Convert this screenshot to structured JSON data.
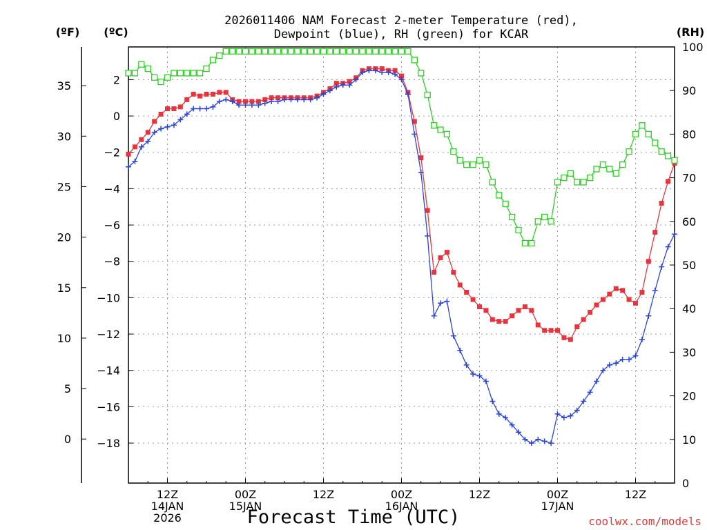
{
  "chart_data": {
    "type": "line",
    "title_line1": "2026011406 NAM Forecast 2-meter Temperature (red),",
    "title_line2": "Dewpoint (blue), RH (green) for KCAR",
    "xlabel": "Forecast Time (UTC)",
    "credit": "coolwx.com/models",
    "unit_f": "(ºF)",
    "unit_c": "(ºC)",
    "unit_rh": "(RH)",
    "ylim_c": [
      -20.2,
      3.8
    ],
    "ylim_rh": [
      0,
      100
    ],
    "forecast_hours": [
      0,
      84
    ],
    "f_ticks": [
      "35",
      "30",
      "25",
      "20",
      "15",
      "10",
      "5",
      "0"
    ],
    "f_tick_values": [
      35,
      30,
      25,
      20,
      15,
      10,
      5,
      0
    ],
    "c_ticks": [
      "2",
      "0",
      "−2",
      "−4",
      "−6",
      "−8",
      "−10",
      "−12",
      "−14",
      "−16",
      "−18"
    ],
    "c_tick_values": [
      2,
      0,
      -2,
      -4,
      -6,
      -8,
      -10,
      -12,
      -14,
      -16,
      -18
    ],
    "rh_ticks": [
      "100",
      "90",
      "80",
      "70",
      "60",
      "50",
      "40",
      "30",
      "20",
      "10",
      "0"
    ],
    "rh_tick_values": [
      100,
      90,
      80,
      70,
      60,
      50,
      40,
      30,
      20,
      10,
      0
    ],
    "x_ticks": [
      {
        "hour": 6,
        "lines": [
          "12Z",
          "14JAN",
          "2026"
        ]
      },
      {
        "hour": 18,
        "lines": [
          "00Z",
          "15JAN"
        ]
      },
      {
        "hour": 30,
        "lines": [
          "12Z"
        ]
      },
      {
        "hour": 42,
        "lines": [
          "00Z",
          "16JAN"
        ]
      },
      {
        "hour": 54,
        "lines": [
          "12Z"
        ]
      },
      {
        "hour": 66,
        "lines": [
          "00Z",
          "17JAN"
        ]
      },
      {
        "hour": 78,
        "lines": [
          "12Z"
        ]
      }
    ],
    "series": [
      {
        "name": "2-meter Temperature",
        "unit": "C",
        "color": "#e8343c",
        "marker": "filled-square",
        "values": [
          -2.1,
          -1.7,
          -1.3,
          -0.9,
          -0.3,
          0.1,
          0.4,
          0.4,
          0.5,
          0.9,
          1.2,
          1.1,
          1.2,
          1.2,
          1.3,
          1.3,
          0.9,
          0.8,
          0.8,
          0.8,
          0.8,
          0.9,
          1.0,
          1.0,
          1.0,
          1.0,
          1.0,
          1.0,
          1.0,
          1.1,
          1.3,
          1.5,
          1.8,
          1.8,
          1.9,
          2.1,
          2.5,
          2.6,
          2.6,
          2.6,
          2.5,
          2.5,
          2.2,
          1.3,
          -0.3,
          -2.3,
          -5.2,
          -8.6,
          -7.8,
          -7.5,
          -8.6,
          -9.3,
          -9.7,
          -10.1,
          -10.5,
          -10.7,
          -11.2,
          -11.3,
          -11.3,
          -11.0,
          -10.7,
          -10.5,
          -10.7,
          -11.5,
          -11.8,
          -11.8,
          -11.8,
          -12.2,
          -12.3,
          -11.6,
          -11.2,
          -10.8,
          -10.4,
          -10.1,
          -9.8,
          -9.5,
          -9.6,
          -10.1,
          -10.3,
          -9.7,
          -8.0,
          -6.4,
          -4.8,
          -3.6,
          -2.6
        ]
      },
      {
        "name": "Dewpoint",
        "unit": "C",
        "color": "#2a43d8",
        "marker": "plus",
        "values": [
          -2.8,
          -2.5,
          -1.7,
          -1.4,
          -0.9,
          -0.7,
          -0.6,
          -0.5,
          -0.2,
          0.1,
          0.4,
          0.4,
          0.4,
          0.5,
          0.8,
          0.9,
          0.8,
          0.6,
          0.6,
          0.6,
          0.6,
          0.7,
          0.8,
          0.8,
          0.9,
          0.9,
          0.9,
          0.9,
          0.9,
          1.0,
          1.2,
          1.4,
          1.6,
          1.7,
          1.7,
          2.0,
          2.4,
          2.5,
          2.5,
          2.4,
          2.4,
          2.3,
          2.0,
          1.2,
          -1.0,
          -3.1,
          -6.6,
          -11.0,
          -10.3,
          -10.2,
          -12.1,
          -12.9,
          -13.7,
          -14.2,
          -14.3,
          -14.6,
          -15.7,
          -16.4,
          -16.6,
          -17.0,
          -17.4,
          -17.8,
          -18.0,
          -17.8,
          -17.9,
          -18.0,
          -16.4,
          -16.6,
          -16.5,
          -16.2,
          -15.7,
          -15.2,
          -14.6,
          -14.0,
          -13.7,
          -13.6,
          -13.4,
          -13.4,
          -13.2,
          -12.3,
          -11.0,
          -9.6,
          -8.3,
          -7.2,
          -6.5
        ]
      },
      {
        "name": "RH",
        "unit": "%",
        "color": "#28d21e",
        "marker": "open-square",
        "values": [
          94,
          94,
          96,
          95,
          93,
          92,
          93,
          94,
          94,
          94,
          94,
          94,
          95,
          97,
          98,
          99,
          99,
          99,
          99,
          99,
          99,
          99,
          99,
          99,
          99,
          99,
          99,
          99,
          99,
          99,
          99,
          99,
          99,
          99,
          99,
          99,
          99,
          99,
          99,
          99,
          99,
          99,
          99,
          99,
          97,
          94,
          89,
          82,
          81,
          80,
          76,
          74,
          73,
          73,
          74,
          73,
          69,
          66,
          64,
          61,
          58,
          55,
          55,
          60,
          61,
          60,
          69,
          70,
          71,
          69,
          69,
          70,
          72,
          73,
          72,
          71,
          73,
          76,
          80,
          82,
          80,
          78,
          76,
          75,
          74
        ]
      }
    ]
  }
}
